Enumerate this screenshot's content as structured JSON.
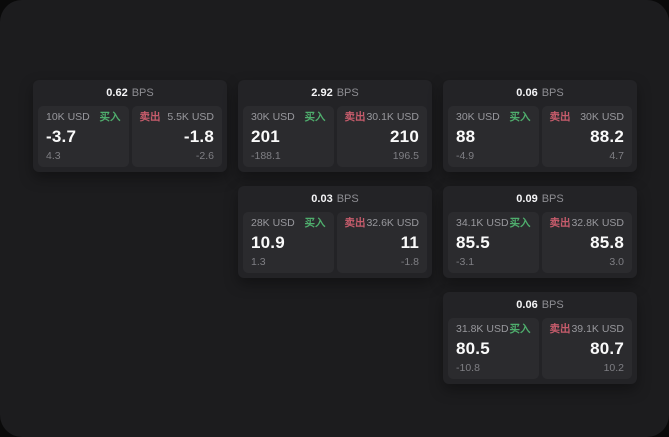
{
  "labels": {
    "bps": "BPS",
    "buy": "买入",
    "sell": "卖出"
  },
  "theme": {
    "page_bg": "#0a0a0a",
    "panel_bg": "#1c1c1e",
    "card_bg": "#232326",
    "tile_bg": "#2b2b2e",
    "text_primary": "#fafafa",
    "text_secondary": "#8e8e93",
    "buy_color": "#4fae6d",
    "sell_color": "#c75c6c"
  },
  "cards": [
    {
      "bps": "0.62",
      "buy": {
        "notional": "10K USD",
        "price": "-3.7",
        "delta": "4.3"
      },
      "sell": {
        "notional": "5.5K USD",
        "price": "-1.8",
        "delta": "-2.6"
      }
    },
    {
      "bps": "2.92",
      "buy": {
        "notional": "30K USD",
        "price": "201",
        "delta": "-188.1"
      },
      "sell": {
        "notional": "30.1K USD",
        "price": "210",
        "delta": "196.5"
      }
    },
    {
      "bps": "0.06",
      "buy": {
        "notional": "30K USD",
        "price": "88",
        "delta": "-4.9"
      },
      "sell": {
        "notional": "30K USD",
        "price": "88.2",
        "delta": "4.7"
      }
    },
    {
      "bps": "0.03",
      "buy": {
        "notional": "28K USD",
        "price": "10.9",
        "delta": "1.3"
      },
      "sell": {
        "notional": "32.6K USD",
        "price": "11",
        "delta": "-1.8"
      }
    },
    {
      "bps": "0.09",
      "buy": {
        "notional": "34.1K USD",
        "price": "85.5",
        "delta": "-3.1"
      },
      "sell": {
        "notional": "32.8K USD",
        "price": "85.8",
        "delta": "3.0"
      }
    },
    {
      "bps": "0.06",
      "buy": {
        "notional": "31.8K USD",
        "price": "80.5",
        "delta": "-10.8"
      },
      "sell": {
        "notional": "39.1K USD",
        "price": "80.7",
        "delta": "10.2"
      }
    }
  ]
}
